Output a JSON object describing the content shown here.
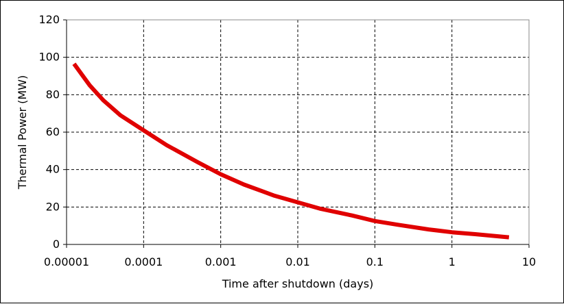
{
  "chart_data": {
    "type": "line",
    "title": "",
    "xlabel": "Time after shutdown (days)",
    "ylabel": "Thermal Power (MW)",
    "x_scale": "log",
    "xlim": [
      1e-05,
      10
    ],
    "ylim": [
      0,
      120
    ],
    "grid": true,
    "x_ticks": [
      "0.00001",
      "0.0001",
      "0.001",
      "0.01",
      "0.1",
      "1",
      "10"
    ],
    "y_ticks": [
      "0",
      "20",
      "40",
      "60",
      "80",
      "100",
      "120"
    ],
    "series": [
      {
        "color": "#e00000",
        "x": [
          1.25e-05,
          2e-05,
          3e-05,
          5e-05,
          0.0001,
          0.0002,
          0.0005,
          0.001,
          0.002,
          0.005,
          0.01,
          0.02,
          0.05,
          0.1,
          0.2,
          0.5,
          1,
          2,
          5.5
        ],
        "y": [
          96.5,
          85,
          77,
          69,
          61,
          53,
          44,
          37.5,
          32,
          26,
          22.5,
          19,
          15.5,
          12.5,
          10.5,
          8,
          6.5,
          5.5,
          3.8
        ]
      }
    ]
  }
}
